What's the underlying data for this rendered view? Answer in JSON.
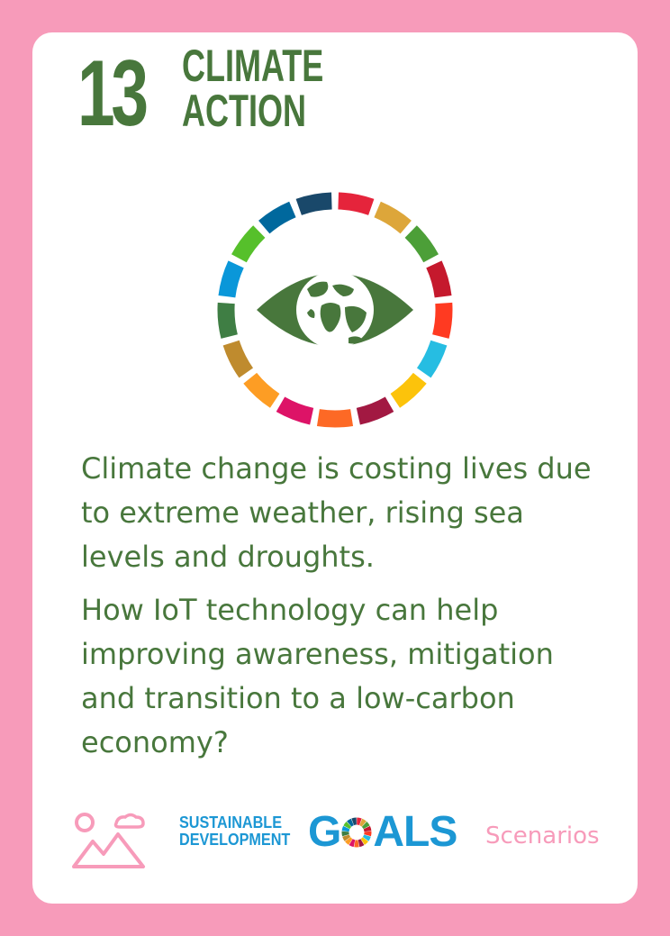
{
  "goal": {
    "number": "13",
    "title_line1": "CLIMATE",
    "title_line2": "ACTION",
    "color": "#48773C",
    "icon": "eye-globe-icon"
  },
  "description": {
    "paragraph1": "Climate change is costing lives due to extreme weather, rising sea levels and droughts.",
    "paragraph2": "How IoT technology can help improving awareness, mitigation and transition to a low-carbon economy?"
  },
  "footer": {
    "scenario_icon": "landscape-icon",
    "logo_line1": "SUSTAINABLE",
    "logo_line2": "DEVELOPMENT",
    "logo_word_start": "G",
    "logo_word_end": "ALS",
    "category": "Scenarios"
  },
  "colors": {
    "background": "#F79BBA",
    "card": "#FFFFFF",
    "logo_blue": "#1C97D4",
    "ring": [
      "#E5243B",
      "#DDA63A",
      "#4C9F38",
      "#C5192D",
      "#FF3A21",
      "#26BDE2",
      "#FCC30B",
      "#A21942",
      "#FD6925",
      "#DD1367",
      "#FD9D24",
      "#BF8B2E",
      "#3F7E44",
      "#0A97D9",
      "#56C02B",
      "#00689D",
      "#19486A"
    ]
  }
}
